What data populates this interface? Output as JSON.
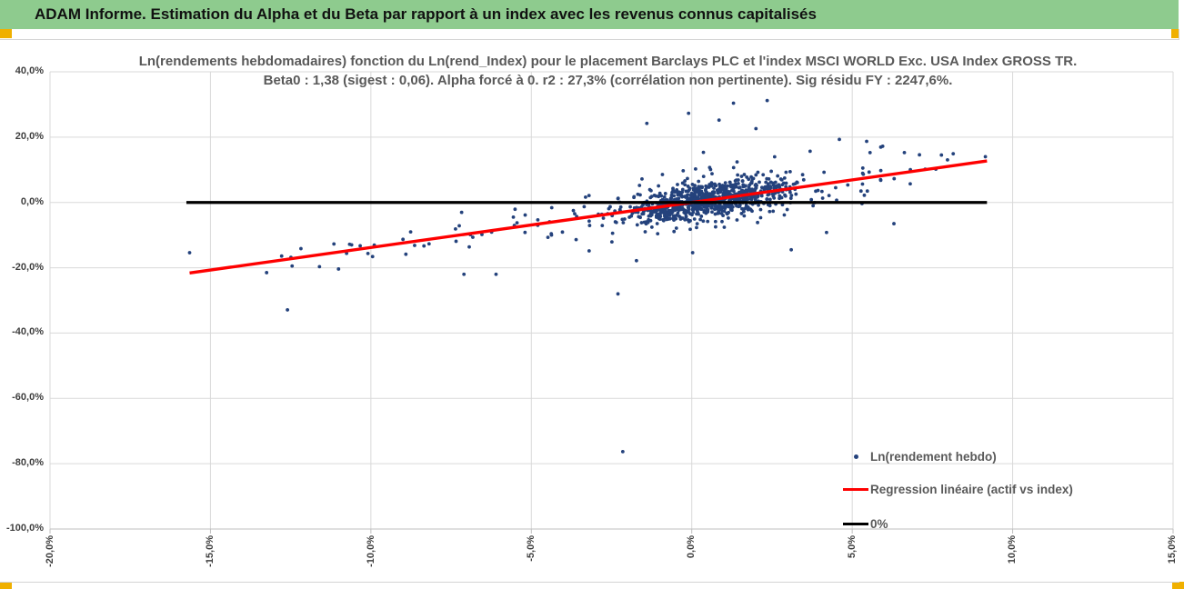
{
  "header": {
    "title": "ADAM Informe. Estimation du Alpha et du Beta par rapport à un index avec les revenus connus capitalisés"
  },
  "chart": {
    "title_line1": "Ln(rendements hebdomadaires) fonction du Ln(rend_Index) pour le placement Barclays PLC et l'index MSCI WORLD Exc. USA Index GROSS TR.",
    "title_line2": "Beta0 : 1,38 (sigest : 0,06). Alpha forcé à 0. r2 : 27,3% (corrélation non pertinente). Sig résidu FY : 2247,6%.",
    "legend": [
      {
        "label": "Ln(rendement hebdo)",
        "marker": "dot",
        "color": "#24427c"
      },
      {
        "label": "Regression linéaire (actif vs index)",
        "marker": "line",
        "color": "#fe0000"
      },
      {
        "label": "0%",
        "marker": "line",
        "color": "#000000"
      }
    ]
  },
  "chart_data": {
    "type": "scatter",
    "title": "Ln(rendements hebdomadaires) fonction du Ln(rend_Index) pour le placement Barclays PLC et l'index MSCI WORLD Exc. USA Index GROSS TR.",
    "subtitle": "Beta0 : 1,38 (sigest : 0,06). Alpha forcé à 0. r2 : 27,3% (corrélation non pertinente). Sig résidu FY : 2247,6%.",
    "stats": {
      "beta0": "1,38",
      "sigest": "0,06",
      "alpha": "forcé à 0",
      "r2": "27,3%",
      "sig_residu_FY": "2247,6%"
    },
    "x_axis": {
      "range_pct": [
        -20,
        15
      ],
      "tick_step_pct": 5,
      "tick_labels": [
        "-20,0%",
        "-15,0%",
        "-10,0%",
        "-5,0%",
        "0,0%",
        "5,0%",
        "10,0%",
        "15,0%"
      ],
      "tick_values_pct": [
        -20,
        -15,
        -10,
        -5,
        0,
        5,
        10,
        15
      ],
      "grid": true
    },
    "y_axis": {
      "range_pct": [
        -100,
        40
      ],
      "tick_step_pct": 20,
      "tick_labels": [
        "40,0%",
        "20,0%",
        "0,0%",
        "-20,0%",
        "-40,0%",
        "-60,0%",
        "-80,0%",
        "-100,0%"
      ],
      "tick_values_pct": [
        40,
        20,
        0,
        -20,
        -40,
        -60,
        -80,
        -100
      ],
      "grid": true
    },
    "series": [
      {
        "name": "Ln(rendement hebdo)",
        "type": "scatter",
        "color": "#24427c",
        "point_radius": 1.9,
        "highlight_points_pct": [
          [
            -15.65,
            -15.4
          ],
          [
            -13.25,
            -21.5
          ],
          [
            -12.6,
            -32.9
          ],
          [
            -2.15,
            -76.3
          ],
          [
            -1.4,
            24.2
          ],
          [
            -0.1,
            27.3
          ],
          [
            0.85,
            25.2
          ],
          [
            1.3,
            30.4
          ],
          [
            2.35,
            31.2
          ],
          [
            2.0,
            22.6
          ],
          [
            4.6,
            19.3
          ],
          [
            5.45,
            18.7
          ],
          [
            5.95,
            17.2
          ],
          [
            9.15,
            14.0
          ],
          [
            6.3,
            -6.5
          ],
          [
            4.2,
            -9.2
          ],
          [
            -7.1,
            -22.0
          ],
          [
            -6.1,
            -22.0
          ],
          [
            -9.0,
            -11.3
          ],
          [
            -10.6,
            -13.0
          ],
          [
            3.1,
            -14.5
          ],
          [
            -2.3,
            -28.0
          ]
        ],
        "cloud_generation": {
          "seed": 42,
          "slope": 1.38,
          "segments": [
            {
              "n": 840,
              "x_dist": "normal",
              "x_mean": 0.45,
              "x_std": 1.25,
              "x_clip": [
                -4.2,
                5.2
              ],
              "noise_mean": 0,
              "noise_std": 2.6,
              "y_clip": [
                -19,
                20
              ]
            },
            {
              "n": 130,
              "x_dist": "normal",
              "x_mean": 0.2,
              "x_std": 2.1,
              "x_clip": [
                -6.8,
                6.8
              ],
              "noise_mean": 0,
              "noise_std": 5.0,
              "y_clip": [
                -27,
                31
              ]
            },
            {
              "n": 38,
              "x_dist": "uniform",
              "x_min": -12.8,
              "x_max": -4.2,
              "noise_mean": 0.8,
              "noise_std": 2.6,
              "y_clip": [
                -24,
                6
              ]
            },
            {
              "n": 22,
              "x_dist": "uniform",
              "x_min": 5.2,
              "x_max": 8.2,
              "noise_mean": 0,
              "noise_std": 4.0,
              "y_clip": [
                -10,
                16
              ]
            }
          ]
        }
      },
      {
        "name": "Regression linéaire (actif vs index)",
        "type": "line",
        "color": "#fe0000",
        "width": 3.4,
        "slope": 1.38,
        "intercept_pct": 0,
        "x_start_pct": -15.65,
        "x_end_pct": 9.2
      },
      {
        "name": "0%",
        "type": "line",
        "color": "#000000",
        "width": 3.2,
        "y_pct": 0,
        "x_start_pct": -15.75,
        "x_end_pct": 9.2
      }
    ],
    "legend_position": "inside-right-bottom",
    "colors": {
      "grid": "#d9d9d9",
      "axis_line": "#bfbfbf",
      "tick_text": "#3f3f3f",
      "title_text": "#595959"
    }
  }
}
